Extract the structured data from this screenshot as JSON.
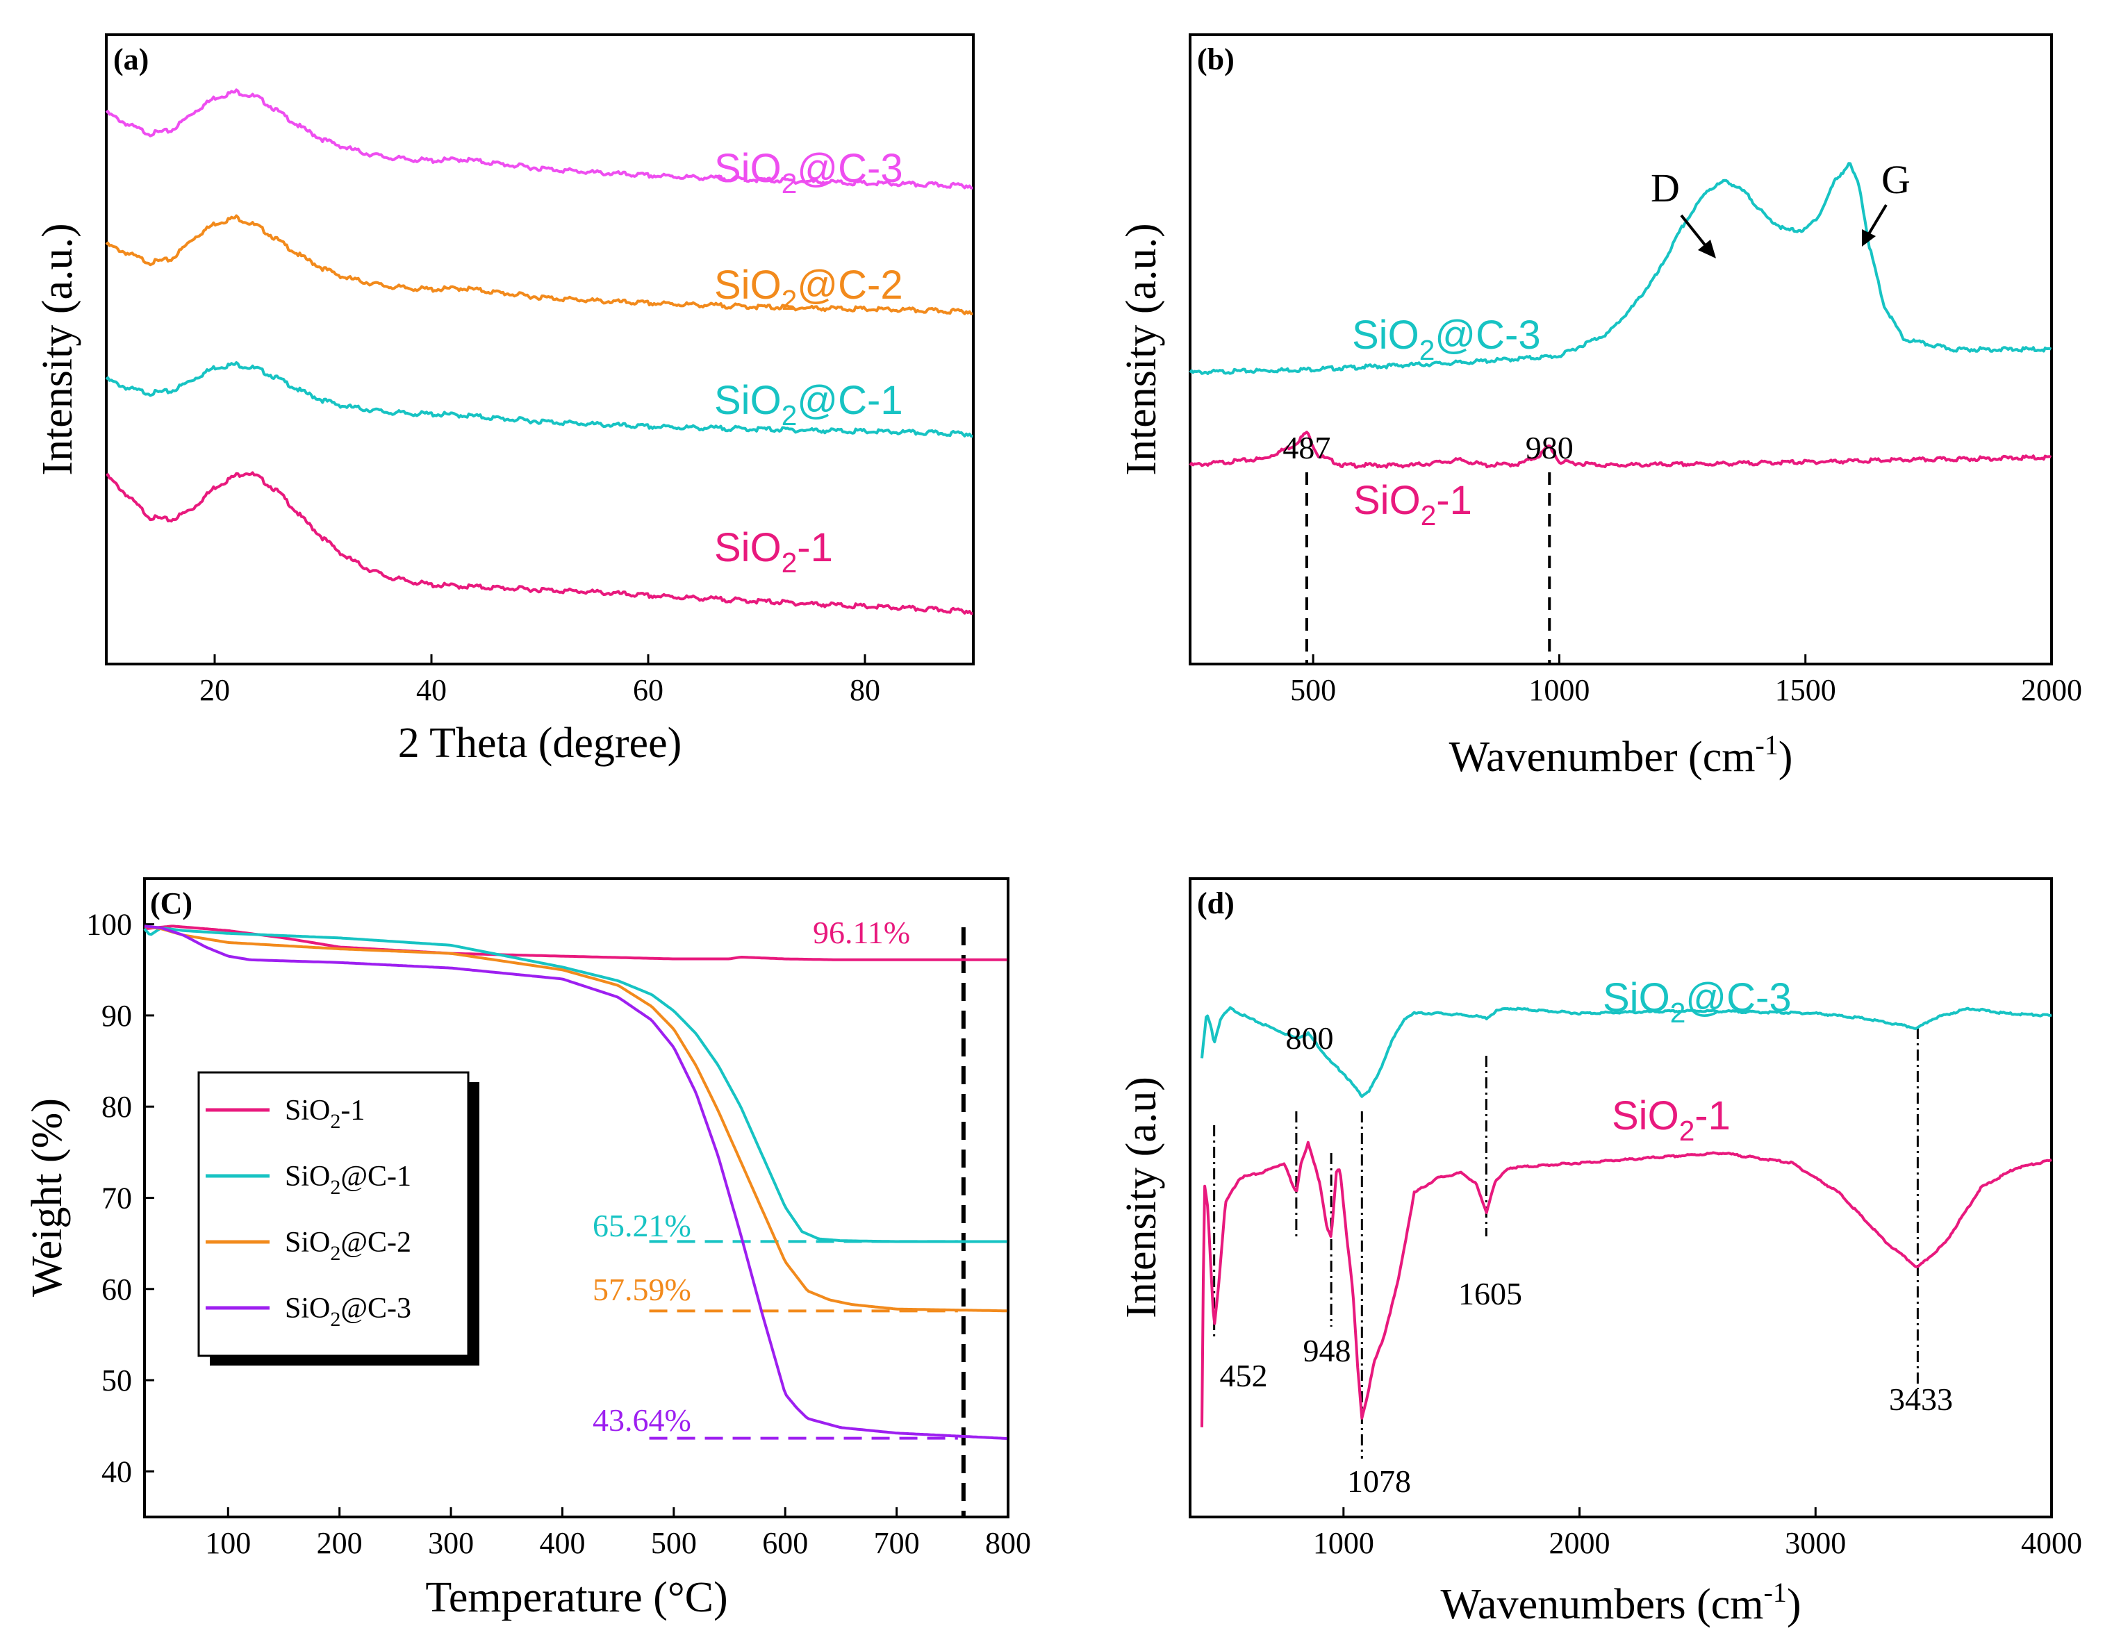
{
  "colors": {
    "pink": "#e8197d",
    "cyan": "#17c3c3",
    "orange": "#f28a1c",
    "magenta": "#ee4ef0",
    "purple": "#9d1ff0"
  },
  "chart_data": [
    {
      "type": "line",
      "panel": "(a)",
      "xlabel": "2 Theta (degree)",
      "ylabel": "Intensity (a.u.)",
      "xlim": [
        10,
        90
      ],
      "xticks": [
        20,
        40,
        60,
        80
      ],
      "series": [
        {
          "name": "SiO2@C-3",
          "label_base": "SiO",
          "label_sub": "2",
          "label_rest": "@C-3",
          "color": "#ee4ef0",
          "x": [
            10,
            12,
            14,
            16,
            18,
            20,
            22,
            24,
            26,
            28,
            30,
            32,
            34,
            36,
            38,
            40,
            43,
            46,
            50,
            55,
            60,
            70,
            80,
            90
          ],
          "y": [
            7.2,
            7.0,
            6.85,
            6.9,
            7.2,
            7.45,
            7.55,
            7.45,
            7.2,
            6.95,
            6.75,
            6.62,
            6.52,
            6.45,
            6.42,
            6.4,
            6.42,
            6.35,
            6.27,
            6.2,
            6.15,
            6.08,
            6.02,
            5.98
          ]
        },
        {
          "name": "SiO2@C-2",
          "label_base": "SiO",
          "label_sub": "2",
          "label_rest": "@C-2",
          "color": "#f28a1c",
          "x": [
            10,
            12,
            14,
            16,
            18,
            20,
            22,
            24,
            26,
            28,
            30,
            32,
            34,
            36,
            38,
            40,
            43,
            46,
            50,
            55,
            60,
            70,
            80,
            90
          ],
          "y": [
            5.0,
            4.85,
            4.7,
            4.75,
            5.1,
            5.35,
            5.45,
            5.3,
            5.05,
            4.8,
            4.6,
            4.45,
            4.37,
            4.3,
            4.27,
            4.25,
            4.27,
            4.2,
            4.12,
            4.06,
            4.02,
            3.96,
            3.92,
            3.88
          ]
        },
        {
          "name": "SiO2@C-1",
          "label_base": "SiO",
          "label_sub": "2",
          "label_rest": "@C-1",
          "color": "#17c3c3",
          "x": [
            10,
            12,
            14,
            16,
            18,
            20,
            22,
            24,
            26,
            28,
            30,
            32,
            34,
            36,
            38,
            40,
            43,
            46,
            50,
            55,
            60,
            70,
            80,
            90
          ],
          "y": [
            2.75,
            2.6,
            2.52,
            2.55,
            2.75,
            2.95,
            3.0,
            2.92,
            2.75,
            2.55,
            2.4,
            2.3,
            2.25,
            2.2,
            2.18,
            2.17,
            2.15,
            2.1,
            2.05,
            2.0,
            1.96,
            1.92,
            1.88,
            1.84
          ]
        },
        {
          "name": "SiO2-1",
          "label_base": "SiO",
          "label_sub": "2",
          "label_rest": "-1",
          "color": "#e8197d",
          "x": [
            10,
            12,
            14,
            16,
            18,
            20,
            22,
            23,
            24,
            26,
            28,
            30,
            32,
            34,
            36,
            38,
            40,
            45,
            50,
            55,
            60,
            70,
            80,
            90
          ],
          "y": [
            1.15,
            0.8,
            0.45,
            0.4,
            0.6,
            0.95,
            1.15,
            1.2,
            1.12,
            0.85,
            0.45,
            0.1,
            -0.2,
            -0.4,
            -0.55,
            -0.62,
            -0.68,
            -0.72,
            -0.76,
            -0.8,
            -0.86,
            -0.95,
            -1.04,
            -1.12
          ]
        }
      ]
    },
    {
      "type": "line",
      "panel": "(b)",
      "xlabel_base": "Wavenumber (cm",
      "xlabel_sup": "-1",
      "xlabel_end": ")",
      "ylabel": "Intensity (a.u.)",
      "xlim": [
        250,
        2000
      ],
      "xticks": [
        500,
        1000,
        1500,
        2000
      ],
      "series": [
        {
          "name": "SiO2@C-3",
          "label_base": "SiO",
          "label_sub": "2",
          "label_rest": "@C-3",
          "color": "#17c3c3",
          "x": [
            250,
            500,
            800,
            1000,
            1100,
            1150,
            1200,
            1250,
            1300,
            1340,
            1380,
            1420,
            1460,
            1500,
            1530,
            1560,
            1590,
            1610,
            1630,
            1660,
            1700,
            1800,
            1900,
            2000
          ],
          "y": [
            2.4,
            2.45,
            2.55,
            2.65,
            3.0,
            3.4,
            3.9,
            4.6,
            5.15,
            5.3,
            5.1,
            4.75,
            4.55,
            4.55,
            4.8,
            5.3,
            5.55,
            5.2,
            4.3,
            3.4,
            2.9,
            2.75,
            2.75,
            2.75
          ]
        },
        {
          "name": "SiO2-1",
          "label_base": "SiO",
          "label_sub": "2",
          "label_rest": "-1",
          "color": "#e8197d",
          "x": [
            250,
            400,
            460,
            487,
            510,
            560,
            700,
            800,
            850,
            920,
            960,
            980,
            1000,
            1100,
            1300,
            1500,
            1700,
            2000
          ],
          "y": [
            1.0,
            1.1,
            1.3,
            1.5,
            1.15,
            1.0,
            1.0,
            1.08,
            1.0,
            1.02,
            1.15,
            1.3,
            1.05,
            1.0,
            1.02,
            1.05,
            1.08,
            1.12
          ]
        }
      ],
      "annotations": [
        {
          "text": "487",
          "x": 487
        },
        {
          "text": "980",
          "x": 980
        },
        {
          "text": "D",
          "x": 1340
        },
        {
          "text": "G",
          "x": 1590
        }
      ]
    },
    {
      "type": "line",
      "panel": "(C)",
      "xlabel": "Temperature (°C)",
      "ylabel": "Weight (%)",
      "xlim": [
        25,
        800
      ],
      "ylim": [
        35,
        105
      ],
      "xticks": [
        100,
        200,
        300,
        400,
        500,
        600,
        700,
        800
      ],
      "yticks": [
        40,
        50,
        60,
        70,
        80,
        90,
        100
      ],
      "series": [
        {
          "name": "SiO2-1",
          "label_base": "SiO",
          "label_sub": "2",
          "label_rest": "-1",
          "color": "#e8197d",
          "x": [
            25,
            50,
            100,
            150,
            200,
            300,
            400,
            500,
            550,
            560,
            600,
            650,
            700,
            800
          ],
          "y": [
            99.5,
            99.8,
            99.3,
            98.5,
            97.5,
            96.8,
            96.5,
            96.2,
            96.2,
            96.4,
            96.2,
            96.1,
            96.1,
            96.1
          ]
        },
        {
          "name": "SiO2@C-1",
          "label_base": "SiO",
          "label_sub": "2",
          "label_rest": "@C-1",
          "color": "#17c3c3",
          "x": [
            25,
            30,
            40,
            60,
            100,
            200,
            300,
            400,
            450,
            480,
            500,
            520,
            540,
            560,
            580,
            600,
            615,
            630,
            650,
            700,
            800
          ],
          "y": [
            99.5,
            98.8,
            99.6,
            99.3,
            99.0,
            98.5,
            97.7,
            95.3,
            93.8,
            92.3,
            90.5,
            88.0,
            84.5,
            80.0,
            74.5,
            69.0,
            66.3,
            65.5,
            65.3,
            65.2,
            65.2
          ]
        },
        {
          "name": "SiO2@C-2",
          "label_base": "SiO",
          "label_sub": "2",
          "label_rest": "@C-2",
          "color": "#f28a1c",
          "x": [
            25,
            40,
            60,
            100,
            200,
            300,
            400,
            450,
            480,
            500,
            520,
            540,
            560,
            580,
            600,
            620,
            640,
            660,
            700,
            800
          ],
          "y": [
            99.8,
            99.5,
            98.8,
            98.0,
            97.3,
            96.8,
            95.0,
            93.3,
            91.0,
            88.5,
            84.5,
            79.5,
            74.0,
            68.5,
            63.0,
            59.8,
            58.8,
            58.3,
            57.8,
            57.6
          ]
        },
        {
          "name": "SiO2@C-3",
          "label_base": "SiO",
          "label_sub": "2",
          "label_rest": "@C-3",
          "color": "#9d1ff0",
          "x": [
            25,
            40,
            60,
            80,
            100,
            120,
            200,
            300,
            400,
            450,
            480,
            500,
            520,
            540,
            560,
            580,
            600,
            610,
            620,
            650,
            700,
            800
          ],
          "y": [
            99.8,
            99.6,
            98.8,
            97.5,
            96.5,
            96.1,
            95.8,
            95.2,
            94.0,
            92.0,
            89.5,
            86.5,
            81.5,
            74.5,
            66.0,
            57.0,
            48.5,
            47.0,
            45.8,
            44.8,
            44.2,
            43.6
          ]
        }
      ],
      "annotations": [
        {
          "text": "96.11%",
          "series": "SiO2-1"
        },
        {
          "text": "65.21%",
          "series": "SiO2@C-1"
        },
        {
          "text": "57.59%",
          "series": "SiO2@C-2"
        },
        {
          "text": "43.64%",
          "series": "SiO2@C-3"
        }
      ],
      "legend": "bottom-left"
    },
    {
      "type": "line",
      "panel": "(d)",
      "xlabel_base": "Wavenumbers (cm",
      "xlabel_sup": "-1",
      "xlabel_end": ")",
      "ylabel": "Intensity (a.u)",
      "xlim": [
        350,
        4000
      ],
      "xticks": [
        1000,
        2000,
        3000,
        4000
      ],
      "series": [
        {
          "name": "SiO2@C-3",
          "label_base": "SiO",
          "label_sub": "2",
          "label_rest": "@C-3",
          "color": "#17c3c3",
          "x": [
            400,
            420,
            440,
            452,
            480,
            520,
            600,
            700,
            800,
            850,
            900,
            950,
            1000,
            1050,
            1078,
            1110,
            1150,
            1200,
            1260,
            1300,
            1400,
            1550,
            1605,
            1650,
            1700,
            2000,
            2500,
            3000,
            3200,
            3433,
            3500,
            3650,
            3800,
            4000
          ],
          "y": [
            5.0,
            5.9,
            5.6,
            5.3,
            5.8,
            6.0,
            5.8,
            5.6,
            5.4,
            5.5,
            5.2,
            4.9,
            4.7,
            4.4,
            4.25,
            4.35,
            4.7,
            5.3,
            5.8,
            5.9,
            5.9,
            5.85,
            5.8,
            5.95,
            6.0,
            5.9,
            5.95,
            5.9,
            5.8,
            5.6,
            5.8,
            6.0,
            5.9,
            5.85
          ]
        },
        {
          "name": "SiO2-1",
          "label_base": "SiO",
          "label_sub": "2",
          "label_rest": "-1",
          "color": "#e8197d",
          "x": [
            400,
            410,
            425,
            440,
            452,
            470,
            500,
            560,
            650,
            750,
            780,
            800,
            820,
            850,
            900,
            930,
            948,
            970,
            985,
            1010,
            1040,
            1060,
            1078,
            1100,
            1130,
            1170,
            1230,
            1300,
            1400,
            1500,
            1560,
            1605,
            1640,
            1700,
            2000,
            2300,
            2600,
            2900,
            3100,
            3300,
            3433,
            3550,
            3700,
            3850,
            4000
          ],
          "y": [
            -2.4,
            2.5,
            2.0,
            0.6,
            -0.4,
            0.4,
            2.1,
            2.6,
            2.7,
            2.9,
            2.5,
            2.3,
            2.9,
            3.3,
            2.5,
            1.6,
            1.4,
            2.7,
            2.8,
            1.6,
            0.3,
            -1.2,
            -2.2,
            -1.8,
            -1.1,
            -0.6,
            0.5,
            2.3,
            2.6,
            2.7,
            2.5,
            1.9,
            2.5,
            2.8,
            2.9,
            3.0,
            3.1,
            2.9,
            2.3,
            1.3,
            0.8,
            1.3,
            2.4,
            2.8,
            2.95
          ]
        }
      ],
      "annotations": [
        {
          "text": "452",
          "x": 452
        },
        {
          "text": "800",
          "x": 800
        },
        {
          "text": "948",
          "x": 948
        },
        {
          "text": "1078",
          "x": 1078
        },
        {
          "text": "1605",
          "x": 1605
        },
        {
          "text": "3433",
          "x": 3433
        }
      ]
    }
  ]
}
